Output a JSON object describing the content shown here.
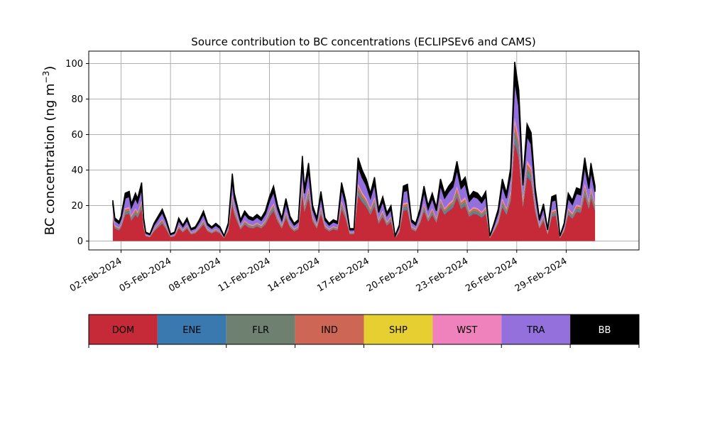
{
  "colors": {
    "DOM": "#c62a38",
    "ENE": "#3a79b0",
    "FLR": "#6e8070",
    "IND": "#cd6655",
    "SHP": "#e6cf30",
    "WST": "#ef81bd",
    "TRA": "#9370db",
    "BB": "#000000",
    "grid": "#b0b0b0"
  },
  "chart_data": {
    "type": "area",
    "stacked": true,
    "title": "Source contribution to BC concentrations (ECLIPSEv6 and CAMS)",
    "ylabel_prefix": "BC concentration (ng m",
    "ylabel_sup": "−3",
    "ylabel_suffix": ")",
    "xlabel": "",
    "ylim": [
      -5,
      107
    ],
    "yticks": [
      0,
      20,
      40,
      60,
      80,
      100
    ],
    "xlim": [
      "2024-01-31T01:00",
      "2024-03-04T10:00"
    ],
    "xticks": [
      "2024-02-02",
      "2024-02-05",
      "2024-02-08",
      "2024-02-11",
      "2024-02-14",
      "2024-02-17",
      "2024-02-20",
      "2024-02-23",
      "2024-02-26",
      "2024-02-29"
    ],
    "xtick_labels": [
      "02-Feb-2024",
      "05-Feb-2024",
      "08-Feb-2024",
      "11-Feb-2024",
      "14-Feb-2024",
      "17-Feb-2024",
      "20-Feb-2024",
      "23-Feb-2024",
      "26-Feb-2024",
      "29-Feb-2024"
    ],
    "grid": true,
    "legend": {
      "placement": "bottom-colorbar",
      "entries": [
        "DOM",
        "ENE",
        "FLR",
        "IND",
        "SHP",
        "WST",
        "TRA",
        "BB"
      ]
    },
    "series_order": [
      "DOM",
      "ENE",
      "FLR",
      "IND",
      "SHP",
      "WST",
      "TRA",
      "BB"
    ],
    "total_points": [
      [
        "2024-02-01T12:00",
        23
      ],
      [
        "2024-02-01T15:00",
        13
      ],
      [
        "2024-02-01T21:00",
        11
      ],
      [
        "2024-02-02T00:00",
        14
      ],
      [
        "2024-02-02T06:00",
        27
      ],
      [
        "2024-02-02T12:00",
        28
      ],
      [
        "2024-02-02T15:00",
        21
      ],
      [
        "2024-02-02T21:00",
        27
      ],
      [
        "2024-02-03T00:00",
        24
      ],
      [
        "2024-02-03T06:00",
        33
      ],
      [
        "2024-02-03T09:00",
        13
      ],
      [
        "2024-02-03T12:00",
        5
      ],
      [
        "2024-02-03T18:00",
        4
      ],
      [
        "2024-02-04T00:00",
        10
      ],
      [
        "2024-02-04T06:00",
        14
      ],
      [
        "2024-02-04T12:00",
        18
      ],
      [
        "2024-02-04T18:00",
        12
      ],
      [
        "2024-02-05T00:00",
        4
      ],
      [
        "2024-02-05T06:00",
        5
      ],
      [
        "2024-02-05T12:00",
        13
      ],
      [
        "2024-02-05T18:00",
        9
      ],
      [
        "2024-02-06T00:00",
        13
      ],
      [
        "2024-02-06T06:00",
        7
      ],
      [
        "2024-02-06T12:00",
        8
      ],
      [
        "2024-02-06T18:00",
        12
      ],
      [
        "2024-02-07T00:00",
        17
      ],
      [
        "2024-02-07T06:00",
        10
      ],
      [
        "2024-02-07T12:00",
        8
      ],
      [
        "2024-02-07T18:00",
        10
      ],
      [
        "2024-02-08T00:00",
        8
      ],
      [
        "2024-02-08T06:00",
        3
      ],
      [
        "2024-02-08T12:00",
        10
      ],
      [
        "2024-02-08T18:00",
        38
      ],
      [
        "2024-02-08T21:00",
        27
      ],
      [
        "2024-02-09T06:00",
        12
      ],
      [
        "2024-02-09T12:00",
        17
      ],
      [
        "2024-02-09T18:00",
        14
      ],
      [
        "2024-02-10T00:00",
        13
      ],
      [
        "2024-02-10T06:00",
        15
      ],
      [
        "2024-02-10T12:00",
        13
      ],
      [
        "2024-02-10T18:00",
        17
      ],
      [
        "2024-02-11T00:00",
        25
      ],
      [
        "2024-02-11T06:00",
        31
      ],
      [
        "2024-02-11T12:00",
        20
      ],
      [
        "2024-02-11T18:00",
        13
      ],
      [
        "2024-02-12T00:00",
        24
      ],
      [
        "2024-02-12T06:00",
        14
      ],
      [
        "2024-02-12T12:00",
        10
      ],
      [
        "2024-02-12T18:00",
        12
      ],
      [
        "2024-02-13T00:00",
        48
      ],
      [
        "2024-02-13T03:00",
        30
      ],
      [
        "2024-02-13T09:00",
        44
      ],
      [
        "2024-02-13T15:00",
        20
      ],
      [
        "2024-02-13T21:00",
        13
      ],
      [
        "2024-02-14T03:00",
        28
      ],
      [
        "2024-02-14T09:00",
        13
      ],
      [
        "2024-02-14T15:00",
        10
      ],
      [
        "2024-02-14T21:00",
        12
      ],
      [
        "2024-02-15T03:00",
        11
      ],
      [
        "2024-02-15T09:00",
        33
      ],
      [
        "2024-02-15T15:00",
        23
      ],
      [
        "2024-02-15T21:00",
        7
      ],
      [
        "2024-02-16T03:00",
        7
      ],
      [
        "2024-02-16T09:00",
        47
      ],
      [
        "2024-02-16T15:00",
        40
      ],
      [
        "2024-02-16T21:00",
        35
      ],
      [
        "2024-02-17T03:00",
        27
      ],
      [
        "2024-02-17T09:00",
        36
      ],
      [
        "2024-02-17T15:00",
        18
      ],
      [
        "2024-02-17T21:00",
        25
      ],
      [
        "2024-02-18T03:00",
        16
      ],
      [
        "2024-02-18T09:00",
        20
      ],
      [
        "2024-02-18T15:00",
        3
      ],
      [
        "2024-02-18T21:00",
        9
      ],
      [
        "2024-02-19T03:00",
        31
      ],
      [
        "2024-02-19T09:00",
        32
      ],
      [
        "2024-02-19T15:00",
        12
      ],
      [
        "2024-02-19T21:00",
        10
      ],
      [
        "2024-02-20T03:00",
        18
      ],
      [
        "2024-02-20T09:00",
        31
      ],
      [
        "2024-02-20T15:00",
        20
      ],
      [
        "2024-02-20T21:00",
        27
      ],
      [
        "2024-02-21T03:00",
        19
      ],
      [
        "2024-02-21T09:00",
        35
      ],
      [
        "2024-02-21T15:00",
        27
      ],
      [
        "2024-02-21T21:00",
        31
      ],
      [
        "2024-02-22T03:00",
        34
      ],
      [
        "2024-02-22T09:00",
        45
      ],
      [
        "2024-02-22T15:00",
        33
      ],
      [
        "2024-02-22T21:00",
        36
      ],
      [
        "2024-02-23T03:00",
        25
      ],
      [
        "2024-02-23T09:00",
        28
      ],
      [
        "2024-02-23T15:00",
        27
      ],
      [
        "2024-02-23T21:00",
        24
      ],
      [
        "2024-02-24T03:00",
        28
      ],
      [
        "2024-02-24T09:00",
        3
      ],
      [
        "2024-02-24T15:00",
        10
      ],
      [
        "2024-02-24T21:00",
        18
      ],
      [
        "2024-02-25T03:00",
        35
      ],
      [
        "2024-02-25T09:00",
        27
      ],
      [
        "2024-02-25T15:00",
        41
      ],
      [
        "2024-02-25T21:00",
        101
      ],
      [
        "2024-02-26T03:00",
        85
      ],
      [
        "2024-02-26T09:00",
        35
      ],
      [
        "2024-02-26T15:00",
        66
      ],
      [
        "2024-02-26T21:00",
        61
      ],
      [
        "2024-02-27T03:00",
        30
      ],
      [
        "2024-02-27T09:00",
        13
      ],
      [
        "2024-02-27T15:00",
        21
      ],
      [
        "2024-02-27T21:00",
        7
      ],
      [
        "2024-02-28T03:00",
        25
      ],
      [
        "2024-02-28T09:00",
        26
      ],
      [
        "2024-02-28T15:00",
        3
      ],
      [
        "2024-02-28T21:00",
        10
      ],
      [
        "2024-02-29T03:00",
        27
      ],
      [
        "2024-02-29T09:00",
        23
      ],
      [
        "2024-02-29T15:00",
        30
      ],
      [
        "2024-02-29T21:00",
        29
      ],
      [
        "2024-03-01T03:00",
        47
      ],
      [
        "2024-03-01T09:00",
        33
      ],
      [
        "2024-03-01T12:00",
        44
      ],
      [
        "2024-03-01T18:00",
        31
      ]
    ],
    "fractions": {
      "DOM": 0.55,
      "ENE": 0.02,
      "FLR": 0.05,
      "IND": 0.04,
      "SHP": 0.005,
      "WST": 0.02,
      "TRA": 0.21,
      "BB": 0.105
    }
  }
}
